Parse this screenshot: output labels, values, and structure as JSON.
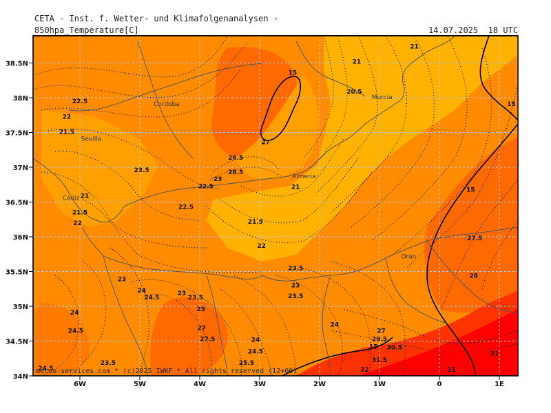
{
  "header": {
    "institute": "CETA - Inst. f. Wetter- und Klimafolgenanalysen -",
    "parameter": "850hpa_Temperature[C]",
    "valid_time": "14.07.2025  18 UTC"
  },
  "credit": "meteo-services.com * (c)2025 IWKF * All rights reserved (12+00)",
  "axes": {
    "lat_labels": [
      "38.5N",
      "38N",
      "37.5N",
      "37N",
      "36.5N",
      "36N",
      "35.5N",
      "35N",
      "34.5N",
      "34N"
    ],
    "lon_labels": [
      "6W",
      "5W",
      "4W",
      "3W",
      "2W",
      "1W",
      "0",
      "1E"
    ]
  },
  "colors": {
    "c21": "#ffb200",
    "c22": "#ffa000",
    "c24": "#ff8c00",
    "c27": "#ff6a00",
    "c30": "#ff3300",
    "c32": "#ff0000",
    "coast": "#555555",
    "grid": "#c8c8c8"
  },
  "cities": [
    {
      "name": "Cordoba",
      "lon": -4.77,
      "lat": 37.88
    },
    {
      "name": "Sevilla",
      "lon": -5.98,
      "lat": 37.38
    },
    {
      "name": "Murcia",
      "lon": -1.13,
      "lat": 37.98
    },
    {
      "name": "Almeria",
      "lon": -2.46,
      "lat": 36.84
    },
    {
      "name": "Cadiz",
      "lon": -6.29,
      "lat": 36.53
    },
    {
      "name": "Oran",
      "lon": -0.64,
      "lat": 35.69
    }
  ],
  "contour_labels": [
    {
      "t": "22.5",
      "lon": -6.0,
      "lat": 37.92
    },
    {
      "t": "22",
      "lon": -6.22,
      "lat": 37.7
    },
    {
      "t": "21.5",
      "lon": -6.22,
      "lat": 37.48
    },
    {
      "t": "23.5",
      "lon": -4.97,
      "lat": 36.93
    },
    {
      "t": "21",
      "lon": -5.92,
      "lat": 36.56
    },
    {
      "t": "21.5",
      "lon": -6.0,
      "lat": 36.32
    },
    {
      "t": "22",
      "lon": -6.04,
      "lat": 36.17
    },
    {
      "t": "22.5",
      "lon": -4.23,
      "lat": 36.4
    },
    {
      "t": "22.5",
      "lon": -3.9,
      "lat": 36.7
    },
    {
      "t": "23",
      "lon": -3.7,
      "lat": 36.8
    },
    {
      "t": "26.5",
      "lon": -3.4,
      "lat": 37.11
    },
    {
      "t": "28.5",
      "lon": -3.4,
      "lat": 36.9
    },
    {
      "t": "27",
      "lon": -2.9,
      "lat": 37.33
    },
    {
      "t": "15",
      "lon": -2.45,
      "lat": 38.33
    },
    {
      "t": "21",
      "lon": -0.42,
      "lat": 38.71
    },
    {
      "t": "21",
      "lon": -1.38,
      "lat": 38.49
    },
    {
      "t": "20.5",
      "lon": -1.42,
      "lat": 38.06
    },
    {
      "t": "21",
      "lon": -2.4,
      "lat": 36.69
    },
    {
      "t": "21.5",
      "lon": -3.07,
      "lat": 36.19
    },
    {
      "t": "22",
      "lon": -2.97,
      "lat": 35.84
    },
    {
      "t": "23.5",
      "lon": -2.4,
      "lat": 35.52
    },
    {
      "t": "23",
      "lon": -2.4,
      "lat": 35.27
    },
    {
      "t": "23.5",
      "lon": -2.4,
      "lat": 35.12
    },
    {
      "t": "23",
      "lon": -5.3,
      "lat": 35.36
    },
    {
      "t": "24",
      "lon": -4.97,
      "lat": 35.2
    },
    {
      "t": "24.5",
      "lon": -4.8,
      "lat": 35.1
    },
    {
      "t": "23",
      "lon": -4.3,
      "lat": 35.16
    },
    {
      "t": "23.5",
      "lon": -4.07,
      "lat": 35.1
    },
    {
      "t": "25",
      "lon": -3.98,
      "lat": 34.93
    },
    {
      "t": "24",
      "lon": -6.09,
      "lat": 34.88
    },
    {
      "t": "24.5",
      "lon": -6.07,
      "lat": 34.62
    },
    {
      "t": "27",
      "lon": -3.97,
      "lat": 34.66
    },
    {
      "t": "27.5",
      "lon": -3.87,
      "lat": 34.5
    },
    {
      "t": "23.5",
      "lon": -5.53,
      "lat": 34.16
    },
    {
      "t": "24.5",
      "lon": -6.57,
      "lat": 34.08
    },
    {
      "t": "24",
      "lon": -3.07,
      "lat": 34.49
    },
    {
      "t": "24.5",
      "lon": -3.07,
      "lat": 34.32
    },
    {
      "t": "25.5",
      "lon": -3.22,
      "lat": 34.16
    },
    {
      "t": "24",
      "lon": -1.75,
      "lat": 34.71
    },
    {
      "t": "27",
      "lon": -0.97,
      "lat": 34.62
    },
    {
      "t": "29.5",
      "lon": -1.0,
      "lat": 34.5
    },
    {
      "t": "30.5",
      "lon": -0.75,
      "lat": 34.38
    },
    {
      "t": "15",
      "lon": -1.1,
      "lat": 34.39
    },
    {
      "t": "31.5",
      "lon": -1.0,
      "lat": 34.2
    },
    {
      "t": "32",
      "lon": -1.25,
      "lat": 34.06
    },
    {
      "t": "31",
      "lon": 0.2,
      "lat": 34.06
    },
    {
      "t": "31",
      "lon": 0.92,
      "lat": 34.29
    },
    {
      "t": "28",
      "lon": 0.57,
      "lat": 35.41
    },
    {
      "t": "27.5",
      "lon": 0.59,
      "lat": 35.95
    },
    {
      "t": "15",
      "lon": 0.52,
      "lat": 36.65
    },
    {
      "t": "15",
      "lon": 1.2,
      "lat": 37.88
    }
  ]
}
